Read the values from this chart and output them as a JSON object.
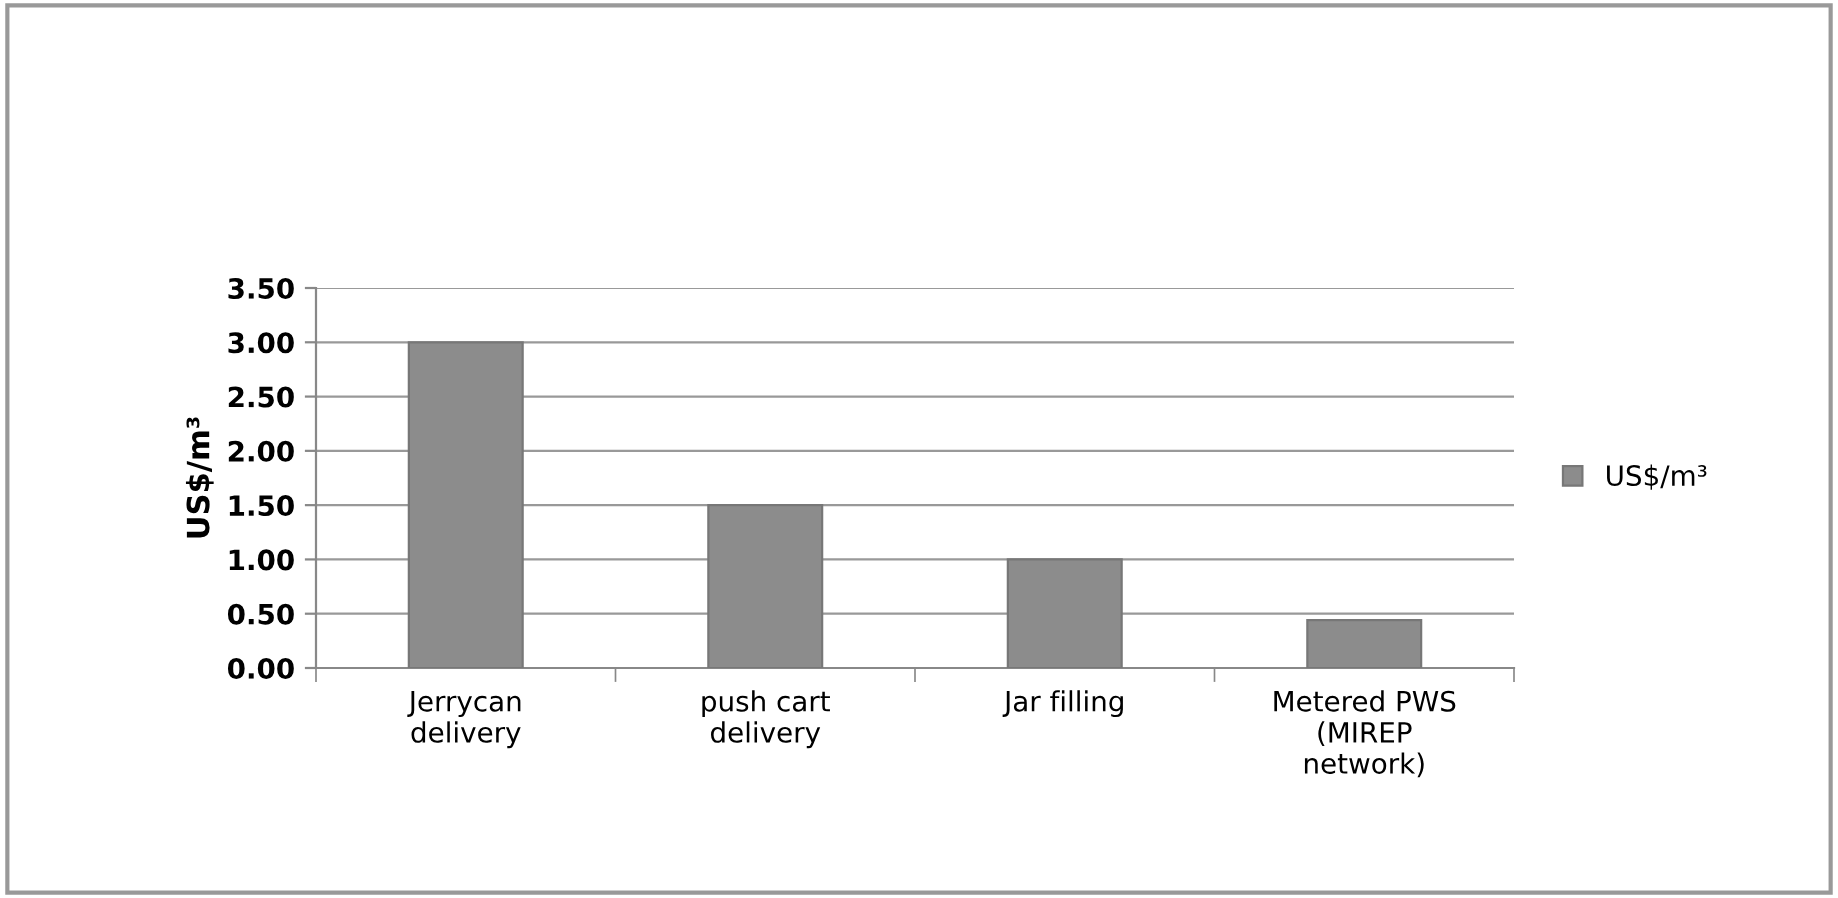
{
  "chart_data": {
    "type": "bar",
    "ylabel": "US$/m³",
    "categories": [
      "Jerrycan\ndelivery",
      "push cart\ndelivery",
      "Jar filling",
      "Metered PWS\n(MIREP\nnetwork)"
    ],
    "series": [
      {
        "name": "US$/m³",
        "color": "#8c8c8c",
        "values": [
          3.0,
          1.5,
          1.0,
          0.44
        ]
      }
    ],
    "ylim": [
      0,
      3.5
    ],
    "yticks": [
      {
        "value": 0,
        "label": "0.00"
      },
      {
        "value": 0.5,
        "label": "0.50"
      },
      {
        "value": 1,
        "label": "1.00"
      },
      {
        "value": 1.5,
        "label": "1.50"
      },
      {
        "value": 2,
        "label": "2.00"
      },
      {
        "value": 2.5,
        "label": "2.50"
      },
      {
        "value": 3,
        "label": "3.00"
      },
      {
        "value": 3.5,
        "label": "3.50"
      }
    ],
    "grid": "y",
    "legend": "right"
  }
}
